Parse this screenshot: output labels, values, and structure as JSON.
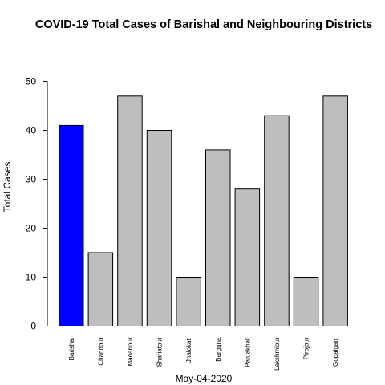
{
  "chart_data": {
    "type": "bar",
    "title": "COVID-19 Total Cases of Barishal and Neighbouring Districts",
    "xlabel": "May-04-2020",
    "ylabel": "Total Cases",
    "categories": [
      "Barishal",
      "Chandpur",
      "Madaripur",
      "Shariatpur",
      "Jhalokati",
      "Barguna",
      "Patuakhali",
      "Lakshmipur",
      "Pirojpur",
      "Gopalganj"
    ],
    "values": [
      41,
      15,
      47,
      40,
      10,
      36,
      28,
      43,
      10,
      47
    ],
    "colors": [
      "#0000ff",
      "#bebebe",
      "#bebebe",
      "#bebebe",
      "#bebebe",
      "#bebebe",
      "#bebebe",
      "#bebebe",
      "#bebebe",
      "#bebebe"
    ],
    "yticks": [
      0,
      10,
      20,
      30,
      40,
      50
    ],
    "ylim": [
      0,
      50
    ],
    "grid": false,
    "legend": "none"
  }
}
